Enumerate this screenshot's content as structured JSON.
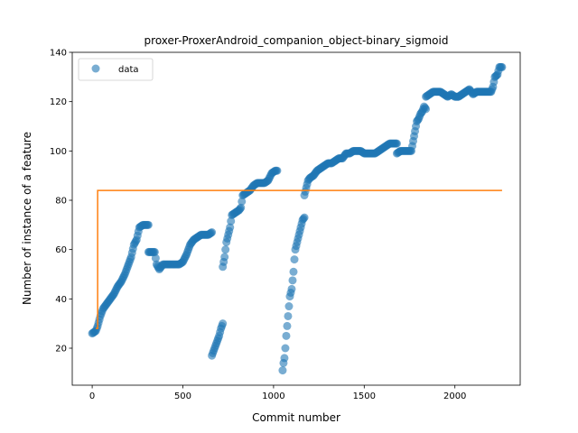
{
  "chart_data": {
    "type": "scatter",
    "title": "proxer-ProxerAndroid_companion_object-binary_sigmoid",
    "xlabel": "Commit number",
    "ylabel": "Number of instance of a feature",
    "xlim": [
      -110,
      2360
    ],
    "ylim": [
      5,
      140
    ],
    "xticks": [
      0,
      500,
      1000,
      1500,
      2000
    ],
    "yticks": [
      20,
      40,
      60,
      80,
      100,
      120,
      140
    ],
    "grid": false,
    "legend": {
      "placement": "top-left",
      "entries": [
        "data"
      ]
    },
    "colors": {
      "data": "#1f77b4",
      "fit": "#ff7f0e"
    },
    "series": [
      {
        "name": "data",
        "kind": "scatter",
        "segments": [
          [
            [
              0,
              26
            ],
            [
              20,
              27
            ],
            [
              30,
              29
            ],
            [
              45,
              33
            ],
            [
              60,
              36
            ],
            [
              80,
              38
            ],
            [
              100,
              40
            ],
            [
              120,
              42
            ],
            [
              140,
              45
            ],
            [
              160,
              47
            ],
            [
              180,
              50
            ],
            [
              200,
              54
            ],
            [
              215,
              57
            ],
            [
              230,
              62
            ],
            [
              245,
              64
            ],
            [
              260,
              69
            ],
            [
              280,
              70
            ],
            [
              300,
              70
            ],
            [
              310,
              70
            ]
          ],
          [
            [
              310,
              59
            ],
            [
              330,
              59
            ],
            [
              345,
              59
            ],
            [
              355,
              54
            ],
            [
              370,
              52
            ],
            [
              390,
              54
            ],
            [
              420,
              54
            ],
            [
              450,
              54
            ],
            [
              480,
              54
            ],
            [
              500,
              55
            ],
            [
              520,
              58
            ],
            [
              540,
              62
            ],
            [
              560,
              64
            ],
            [
              580,
              65
            ],
            [
              600,
              66
            ],
            [
              620,
              66
            ],
            [
              640,
              66
            ],
            [
              660,
              67
            ]
          ],
          [
            [
              660,
              17
            ],
            [
              670,
              19
            ],
            [
              680,
              21
            ],
            [
              690,
              23
            ],
            [
              700,
              25
            ],
            [
              710,
              28
            ],
            [
              720,
              30
            ]
          ],
          [
            [
              720,
              53
            ],
            [
              730,
              57
            ],
            [
              740,
              63
            ],
            [
              750,
              66
            ],
            [
              760,
              69
            ],
            [
              770,
              74
            ],
            [
              790,
              75
            ],
            [
              810,
              76
            ],
            [
              820,
              77
            ],
            [
              830,
              82
            ],
            [
              850,
              83
            ],
            [
              870,
              84
            ],
            [
              890,
              86
            ],
            [
              910,
              87
            ],
            [
              930,
              87
            ],
            [
              950,
              87
            ],
            [
              970,
              88
            ],
            [
              990,
              91
            ],
            [
              1010,
              92
            ],
            [
              1020,
              92
            ]
          ],
          [
            [
              1050,
              11
            ],
            [
              1055,
              14
            ],
            [
              1060,
              16
            ],
            [
              1065,
              20
            ],
            [
              1070,
              25
            ],
            [
              1075,
              29
            ],
            [
              1080,
              33
            ],
            [
              1085,
              37
            ],
            [
              1090,
              41
            ],
            [
              1100,
              44
            ],
            [
              1110,
              51
            ],
            [
              1115,
              56
            ],
            [
              1120,
              60
            ],
            [
              1130,
              63
            ],
            [
              1140,
              66
            ],
            [
              1150,
              69
            ],
            [
              1160,
              72
            ],
            [
              1170,
              73
            ]
          ],
          [
            [
              1170,
              82
            ],
            [
              1180,
              85
            ],
            [
              1190,
              88
            ],
            [
              1200,
              89
            ],
            [
              1220,
              90
            ],
            [
              1240,
              92
            ],
            [
              1260,
              93
            ],
            [
              1280,
              94
            ],
            [
              1300,
              95
            ],
            [
              1320,
              95
            ],
            [
              1340,
              96
            ],
            [
              1360,
              97
            ],
            [
              1380,
              97
            ],
            [
              1400,
              99
            ],
            [
              1420,
              99
            ],
            [
              1440,
              100
            ],
            [
              1460,
              100
            ],
            [
              1480,
              100
            ],
            [
              1500,
              99
            ],
            [
              1520,
              99
            ],
            [
              1540,
              99
            ],
            [
              1560,
              99
            ],
            [
              1580,
              100
            ],
            [
              1600,
              101
            ],
            [
              1620,
              102
            ],
            [
              1640,
              103
            ],
            [
              1660,
              103
            ],
            [
              1680,
              103
            ]
          ],
          [
            [
              1680,
              99
            ],
            [
              1700,
              100
            ],
            [
              1720,
              100
            ],
            [
              1740,
              100
            ],
            [
              1760,
              100
            ],
            [
              1770,
              104
            ],
            [
              1780,
              108
            ],
            [
              1790,
              112
            ],
            [
              1800,
              113
            ],
            [
              1810,
              115
            ],
            [
              1820,
              116
            ],
            [
              1830,
              118
            ],
            [
              1840,
              117
            ]
          ],
          [
            [
              1840,
              122
            ],
            [
              1860,
              123
            ],
            [
              1880,
              124
            ],
            [
              1900,
              124
            ],
            [
              1920,
              124
            ],
            [
              1940,
              123
            ],
            [
              1960,
              122
            ],
            [
              1980,
              123
            ],
            [
              2000,
              122
            ],
            [
              2020,
              122
            ],
            [
              2040,
              123
            ],
            [
              2060,
              124
            ],
            [
              2080,
              125
            ],
            [
              2100,
              123
            ],
            [
              2120,
              124
            ],
            [
              2140,
              124
            ],
            [
              2160,
              124
            ],
            [
              2180,
              124
            ],
            [
              2200,
              124
            ],
            [
              2210,
              126
            ],
            [
              2220,
              130
            ],
            [
              2235,
              131
            ],
            [
              2245,
              134
            ],
            [
              2260,
              134
            ]
          ]
        ]
      },
      {
        "name": "",
        "kind": "line",
        "points": [
          [
            20,
            28
          ],
          [
            30,
            28
          ],
          [
            30,
            84
          ],
          [
            2260,
            84
          ]
        ]
      }
    ]
  }
}
